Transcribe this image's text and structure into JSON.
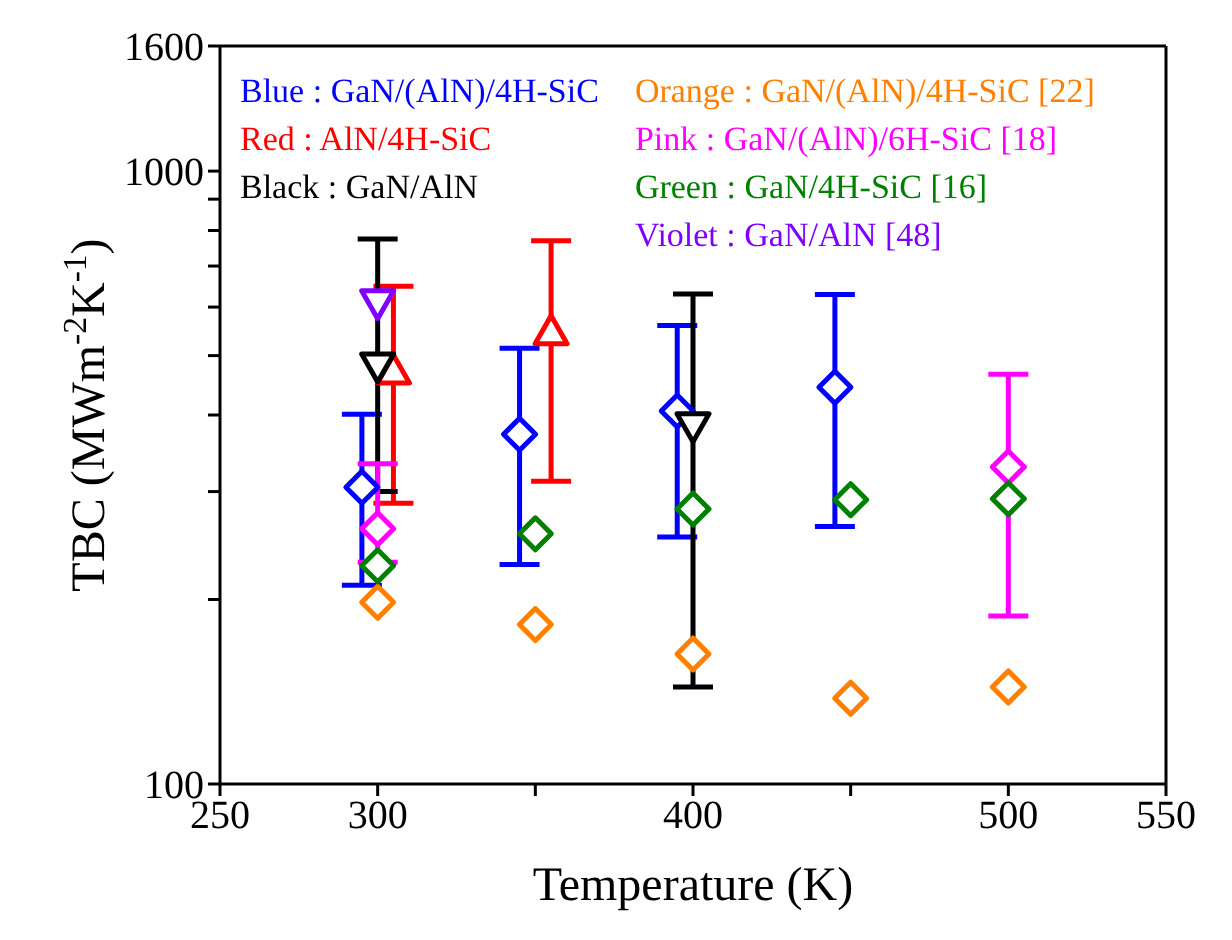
{
  "chart_data": {
    "type": "scatter",
    "xlabel": "Temperature (K)",
    "ylabel": "TBC (MWm$^{-2}$K$^{-1}$)",
    "log": "y",
    "xlim": [
      250,
      550
    ],
    "xticks": [
      250,
      300,
      {
        "value": 350,
        "label": null
      },
      400,
      {
        "value": 450,
        "label": null
      },
      500,
      550
    ],
    "ylim": [
      100,
      1600
    ],
    "yticks": [
      100,
      {
        "value": 200,
        "label": null
      },
      {
        "value": 300,
        "label": null
      },
      {
        "value": 400,
        "label": null
      },
      {
        "value": 500,
        "label": null
      },
      {
        "value": 600,
        "label": null
      },
      {
        "value": 700,
        "label": null
      },
      {
        "value": 800,
        "label": null
      },
      {
        "value": 900,
        "label": null
      },
      1000,
      1600
    ],
    "legend": "top left",
    "series": [
      {
        "name": "Blue : GaN/(AlN)/4H-SiC",
        "color": "#0000ff",
        "marker": "diamond",
        "x": [
          295,
          345,
          395,
          445
        ],
        "values": [
          305,
          372,
          406,
          444
        ],
        "errors": [
          [
            211,
            401
          ],
          [
            228,
            514
          ],
          [
            253,
            560
          ],
          [
            263,
            629
          ]
        ]
      },
      {
        "name": "Red : AlN/4H-SiC",
        "color": "#ff0000",
        "marker": "triangle",
        "x": [
          305,
          355
        ],
        "values": [
          472,
          547
        ],
        "errors": [
          [
            287,
            649
          ],
          [
            312,
            770
          ]
        ]
      },
      {
        "name": "Black : GaN/AlN",
        "color": "#000000",
        "marker": "triangle-down",
        "x": [
          300,
          400
        ],
        "values": [
          481,
          384
        ],
        "errors": [
          [
            300,
            775
          ],
          [
            144,
            630
          ]
        ]
      },
      {
        "name": "Orange : GaN/(AlN)/4H-SiC [22]",
        "color": "#ff8000",
        "marker": "diamond",
        "x": [
          300,
          350,
          400,
          450,
          500
        ],
        "values": [
          198,
          182,
          163,
          138,
          144
        ]
      },
      {
        "name": "Pink : GaN/(AlN)/6H-SiC [18]",
        "color": "#ff00ff",
        "marker": "diamond",
        "x": [
          300,
          500
        ],
        "values": [
          261,
          329
        ],
        "errors": [
          [
            230,
            333
          ],
          [
            188,
            466
          ]
        ]
      },
      {
        "name": "Green : GaN/4H-SiC [16]",
        "color": "#008000",
        "marker": "diamond",
        "x": [
          300,
          350,
          400,
          450,
          500
        ],
        "values": [
          227,
          256,
          281,
          291,
          292
        ]
      },
      {
        "name": "Violet : GaN/AlN [48]",
        "color": "#8000ff",
        "marker": "triangle-down",
        "x": [
          300
        ],
        "values": [
          610
        ]
      }
    ]
  }
}
